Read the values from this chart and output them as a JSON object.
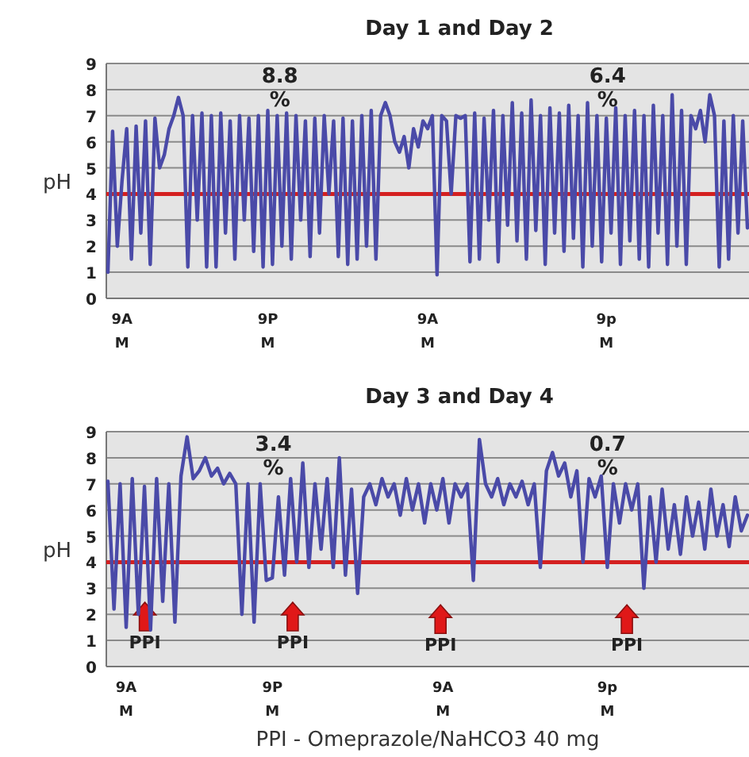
{
  "chart_data": [
    {
      "type": "line",
      "title": "Day 1 and Day 2",
      "ylabel": "pH",
      "ylim": [
        0,
        9
      ],
      "grid": "y",
      "line_style": "solid",
      "categories": [
        null,
        null,
        null,
        "9A\nM",
        null,
        null,
        null,
        null,
        null,
        null,
        null,
        null,
        null,
        null,
        null,
        null,
        null,
        null,
        null,
        null,
        null,
        null,
        null,
        null,
        null,
        null,
        null,
        null,
        null,
        null,
        null,
        null,
        null,
        null,
        "9P\nM",
        null,
        null,
        null,
        null,
        null,
        null,
        null,
        null,
        null,
        null,
        null,
        null,
        null,
        null,
        null,
        null,
        null,
        null,
        null,
        null,
        null,
        null,
        null,
        null,
        null,
        null,
        null,
        null,
        null,
        null,
        null,
        null,
        null,
        "9A\nM",
        null,
        null,
        null,
        null,
        null,
        null,
        null,
        null,
        null,
        null,
        null,
        null,
        null,
        null,
        null,
        null,
        null,
        null,
        null,
        null,
        null,
        null,
        null,
        null,
        null,
        null,
        null,
        null,
        null,
        null,
        null,
        null,
        null,
        null,
        null,
        null,
        null,
        "9p\nM",
        null,
        null,
        null,
        null,
        null,
        null,
        null,
        null,
        null,
        null,
        null,
        null,
        null,
        null,
        null,
        null,
        null,
        null,
        null,
        null,
        null,
        null,
        null,
        null,
        null,
        null,
        null,
        null,
        null,
        null
      ],
      "yticks": [
        0,
        1,
        2,
        3,
        4,
        5,
        6,
        7,
        8,
        9
      ],
      "ref_lines": [
        {
          "axis": "y",
          "value": 4,
          "color": "#d42020"
        }
      ],
      "annotations": [
        "8.8\n%",
        "6.4\n%"
      ],
      "series": [
        {
          "color": "#4a4aa8",
          "values": [
            1.0,
            6.4,
            2.0,
            4.5,
            6.5,
            1.5,
            6.6,
            2.5,
            6.8,
            1.3,
            6.9,
            5.0,
            5.5,
            6.5,
            7.0,
            7.7,
            7.0,
            1.2,
            7.0,
            3.0,
            7.1,
            1.2,
            7.0,
            1.2,
            7.1,
            2.5,
            6.8,
            1.5,
            7.0,
            3.0,
            6.9,
            1.8,
            7.0,
            1.2,
            7.2,
            1.3,
            7.0,
            2.0,
            7.1,
            1.5,
            7.0,
            3.0,
            6.8,
            1.6,
            6.9,
            2.5,
            7.0,
            4.0,
            6.8,
            1.6,
            6.9,
            1.3,
            6.8,
            1.5,
            7.0,
            2.0,
            7.2,
            1.5,
            7.0,
            7.5,
            7.0,
            6.0,
            5.6,
            6.2,
            5.0,
            6.5,
            5.8,
            6.8,
            6.5,
            7.0,
            0.9,
            7.0,
            6.8,
            4.0,
            7.0,
            6.9,
            7.0,
            1.4,
            7.1,
            1.5,
            6.9,
            3.0,
            7.2,
            1.4,
            7.0,
            2.8,
            7.5,
            2.2,
            7.1,
            1.5,
            7.6,
            2.6,
            7.0,
            1.3,
            7.3,
            2.5,
            7.1,
            1.8,
            7.4,
            2.3,
            7.0,
            1.2,
            7.5,
            2.0,
            7.0,
            1.4,
            6.9,
            2.5,
            7.3,
            1.3,
            7.0,
            2.2,
            7.2,
            1.5,
            7.0,
            1.2,
            7.4,
            2.5,
            7.0,
            1.3,
            7.8,
            2.0,
            7.2,
            1.3,
            7.0,
            6.5,
            7.2,
            6.0,
            7.8,
            7.0,
            1.2,
            6.8,
            1.5,
            7.0,
            2.5,
            6.8,
            2.7
          ]
        }
      ]
    },
    {
      "type": "line",
      "title": "Day 3 and Day 4",
      "ylabel": "pH",
      "ylim": [
        0,
        9
      ],
      "grid": "y",
      "line_style": "solid",
      "categories": [
        null,
        null,
        null,
        "9A\nM",
        null,
        null,
        null,
        null,
        null,
        null,
        null,
        null,
        null,
        null,
        null,
        null,
        null,
        null,
        null,
        null,
        null,
        null,
        null,
        null,
        null,
        null,
        null,
        "9P\nM",
        null,
        null,
        null,
        null,
        null,
        null,
        null,
        null,
        null,
        null,
        null,
        null,
        null,
        null,
        null,
        null,
        null,
        null,
        null,
        null,
        null,
        null,
        null,
        null,
        null,
        null,
        null,
        "9A\nM",
        null,
        null,
        null,
        null,
        null,
        null,
        null,
        null,
        null,
        null,
        null,
        null,
        null,
        null,
        null,
        null,
        null,
        null,
        null,
        null,
        null,
        null,
        null,
        null,
        null,
        null,
        "9p\nM",
        null,
        null,
        null,
        null,
        null,
        null,
        null,
        null,
        null,
        null,
        null,
        null,
        null,
        null,
        null,
        null,
        null,
        null,
        null,
        null,
        null,
        null,
        null
      ],
      "yticks": [
        0,
        1,
        2,
        3,
        4,
        5,
        6,
        7,
        8,
        9
      ],
      "ref_lines": [
        {
          "axis": "y",
          "value": 4,
          "color": "#d42020"
        }
      ],
      "annotations": [
        "3.4\n%",
        "0.7\n%",
        "PPI",
        "PPI",
        "PPI",
        "PPI",
        "PPI - Omeprazole/NaHCO3 40 mg"
      ],
      "series": [
        {
          "color": "#4a4aa8",
          "values": [
            7.1,
            2.2,
            7.0,
            1.5,
            7.2,
            2.0,
            6.9,
            1.4,
            7.2,
            2.5,
            7.0,
            1.7,
            7.3,
            8.8,
            7.2,
            7.5,
            8.0,
            7.3,
            7.6,
            7.0,
            7.4,
            7.0,
            2.0,
            7.0,
            1.7,
            7.0,
            3.3,
            3.4,
            6.5,
            3.5,
            7.2,
            4.0,
            7.8,
            3.8,
            7.0,
            4.5,
            7.2,
            3.8,
            8.0,
            3.5,
            6.8,
            2.8,
            6.5,
            7.0,
            6.2,
            7.2,
            6.5,
            7.0,
            5.8,
            7.2,
            6.0,
            7.0,
            5.5,
            7.0,
            6.0,
            7.2,
            5.5,
            7.0,
            6.5,
            7.0,
            3.3,
            8.7,
            7.0,
            6.5,
            7.2,
            6.2,
            7.0,
            6.5,
            7.1,
            6.2,
            7.0,
            3.8,
            7.5,
            8.2,
            7.3,
            7.8,
            6.5,
            7.5,
            4.0,
            7.2,
            6.5,
            7.3,
            3.8,
            7.0,
            5.5,
            7.0,
            6.0,
            7.0,
            3.0,
            6.5,
            4.0,
            6.8,
            4.5,
            6.2,
            4.3,
            6.5,
            5.0,
            6.3,
            4.5,
            6.8,
            5.0,
            6.2,
            4.6,
            6.5,
            5.2,
            5.8
          ]
        }
      ]
    }
  ]
}
